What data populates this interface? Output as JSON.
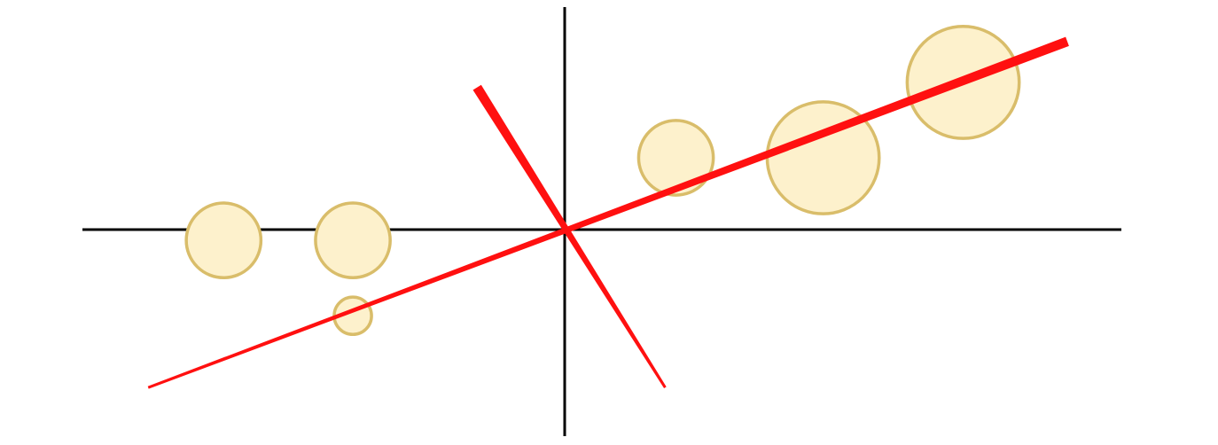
{
  "diagram": {
    "type": "scatter-with-principal-axes",
    "colors": {
      "background": "#ffffff",
      "axis": "#000000",
      "principal_line": "#ff1010",
      "point_fill": "#fdf1cc",
      "point_stroke": "#d9bd6a"
    },
    "axes": {
      "x_range": [
        -7.0,
        8.0
      ],
      "y_range": [
        -3.0,
        3.2
      ]
    },
    "points": [
      {
        "x": -4.75,
        "y": -0.15,
        "size": 0.52
      },
      {
        "x": -2.95,
        "y": -0.15,
        "size": 0.52
      },
      {
        "x": -2.95,
        "y": -1.2,
        "size": 0.26
      },
      {
        "x": 1.55,
        "y": 1.0,
        "size": 0.52
      },
      {
        "x": 3.6,
        "y": 1.0,
        "size": 0.78
      },
      {
        "x": 5.55,
        "y": 2.05,
        "size": 0.78
      }
    ],
    "principal_lines": [
      {
        "from": [
          -5.8,
          -2.2
        ],
        "to": [
          7.0,
          2.62
        ],
        "start_width": 3,
        "end_width": 11
      },
      {
        "from": [
          1.4,
          -2.2
        ],
        "to": [
          -1.22,
          1.98
        ],
        "start_width": 3,
        "end_width": 11
      }
    ]
  }
}
